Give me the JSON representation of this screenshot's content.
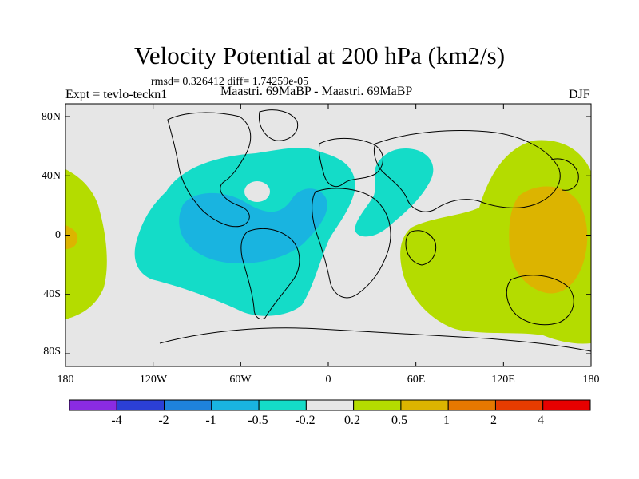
{
  "title": "Velocity Potential at 200 hPa (km2/s)",
  "stats": "rmsd= 0.326412 diff= 1.74259e-05",
  "expt": "Expt = tevlo-teckn1",
  "subtitle": "Maastri.  69MaBP - Maastri.  69MaBP",
  "season": "DJF",
  "y_axis": [
    "80N",
    "40N",
    "0",
    "40S",
    "80S"
  ],
  "x_axis": [
    "180",
    "120W",
    "60W",
    "0",
    "60E",
    "120E",
    "180"
  ],
  "colorbar": {
    "colors": [
      "#8a2be2",
      "#2b3fd6",
      "#1e82dc",
      "#19b4e0",
      "#14dcc8",
      "#e6e6e6",
      "#b4dc00",
      "#dcb400",
      "#e67800",
      "#e63c00",
      "#e60000"
    ],
    "labels": [
      "-4",
      "-2",
      "-1",
      "-0.5",
      "-0.2",
      "0.2",
      "0.5",
      "1",
      "2",
      "4"
    ]
  },
  "map": {
    "background": "#e6e6e6",
    "neg_light": "#14dcc8",
    "neg_mid": "#19b4e0",
    "pos_light": "#b4dc00",
    "pos_mid": "#dcb400"
  }
}
